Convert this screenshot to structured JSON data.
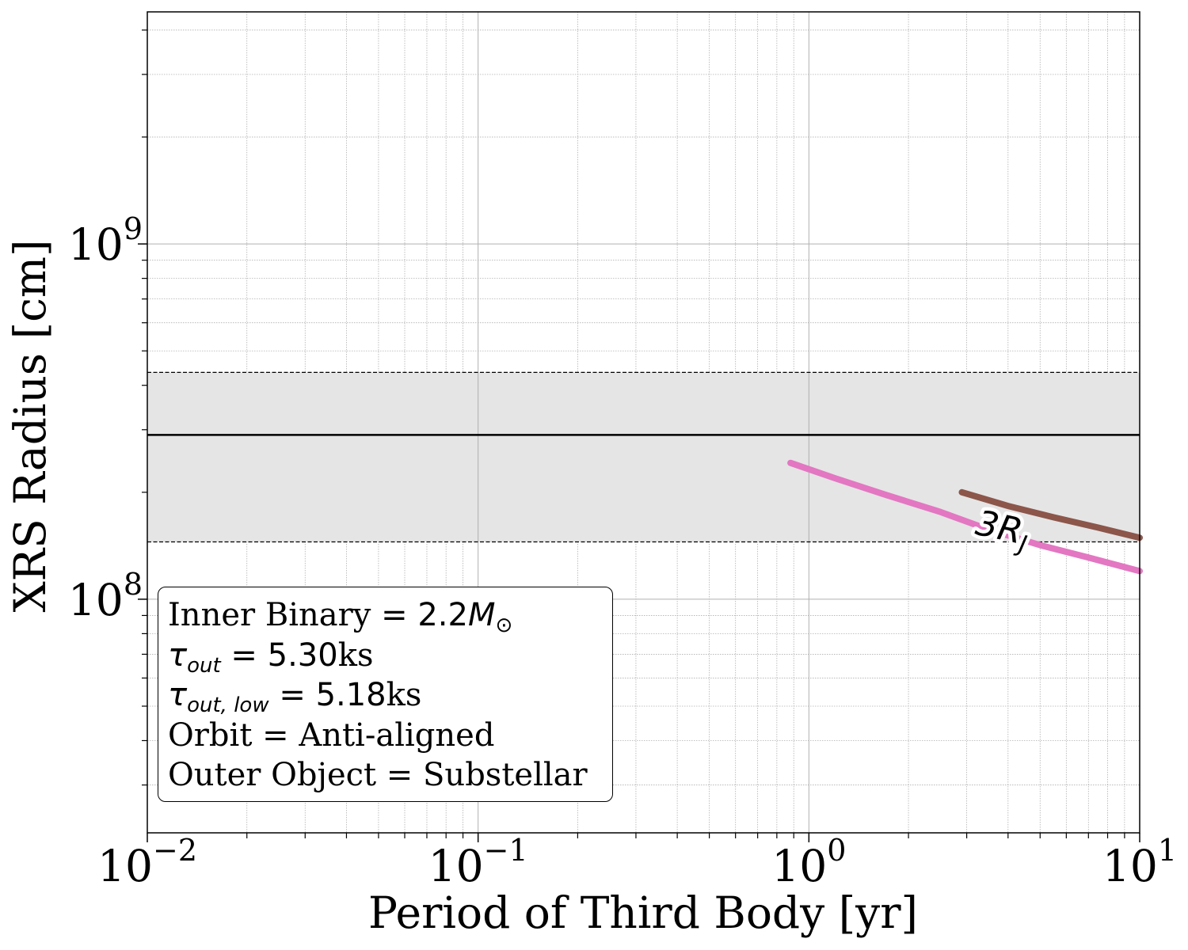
{
  "chart_data": {
    "type": "line",
    "title": "",
    "xlabel": "Period of Third Body [yr]",
    "ylabel": "XRS Radius [cm]",
    "xscale": "log",
    "yscale": "log",
    "xlim": [
      0.01,
      10
    ],
    "ylim": [
      22000000,
      4500000000
    ],
    "grid": true,
    "x_ticks": [
      {
        "base": "10",
        "exp": "−2",
        "value": 0.01
      },
      {
        "base": "10",
        "exp": "−1",
        "value": 0.1
      },
      {
        "base": "10",
        "exp": "0",
        "value": 1
      },
      {
        "base": "10",
        "exp": "1",
        "value": 10
      }
    ],
    "y_ticks": [
      {
        "base": "10",
        "exp": "8",
        "value": 100000000
      },
      {
        "base": "10",
        "exp": "9",
        "value": 1000000000
      }
    ],
    "reference_line": {
      "y": 290000000,
      "color": "#000000"
    },
    "reference_band": {
      "y_low": 145000000,
      "y_high": 435000000,
      "color": "#e5e5e5"
    },
    "series": [
      {
        "color": "#e377c2",
        "x": [
          0.88,
          1.2,
          1.7,
          2.5,
          3.5,
          5.0,
          7.0,
          10.0
        ],
        "y": [
          242000000,
          219000000,
          197000000,
          176000000,
          157000000,
          142000000,
          131000000,
          120000000
        ]
      },
      {
        "color": "#8c564b",
        "x": [
          2.9,
          4.0,
          5.5,
          7.5,
          10.0
        ],
        "y": [
          200000000,
          183000000,
          170000000,
          159000000,
          149000000
        ]
      }
    ],
    "annotations": [
      {
        "text_main": "3R",
        "text_sub": "J",
        "x": 3.85,
        "y": 158000000,
        "rotation": 12
      }
    ],
    "legend": {
      "placement": "lower-left",
      "lines": [
        {
          "label": "Inner Binary",
          "eq": " = ",
          "value": "2.2",
          "unit": "M",
          "unit_sub": "⊙"
        },
        {
          "label": "τ",
          "sub": "out",
          "eq": " = ",
          "value": "5.30",
          "unit": "ks"
        },
        {
          "label": "τ",
          "sub": "out, low",
          "eq": " = ",
          "value": "5.18",
          "unit": "ks"
        },
        {
          "text": "Orbit = Anti-aligned"
        },
        {
          "text": "Outer Object = Substellar"
        }
      ]
    }
  }
}
